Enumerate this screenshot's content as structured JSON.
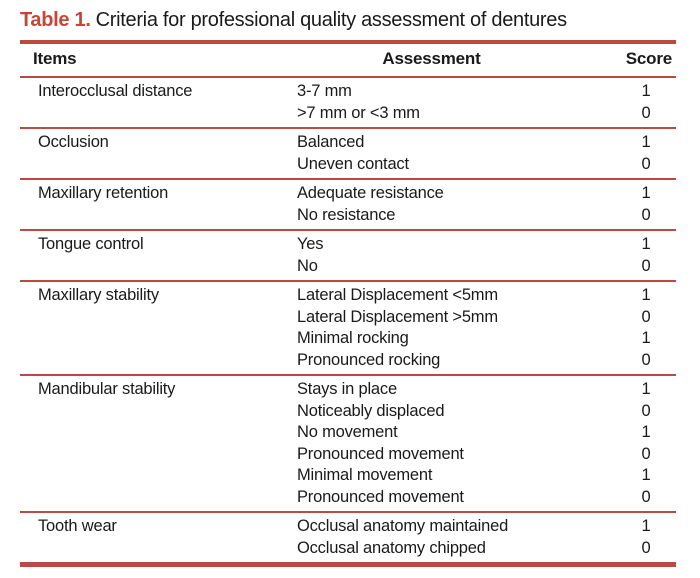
{
  "title": {
    "label": "Table 1.",
    "text": "Criteria for professional quality assessment of dentures"
  },
  "table": {
    "headers": [
      "Items",
      "Assessment",
      "Score"
    ],
    "groups": [
      {
        "item": "Interocclusal distance",
        "rows": [
          {
            "assessment": "3-7 mm",
            "score": "1"
          },
          {
            "assessment": ">7 mm or <3 mm",
            "score": "0"
          }
        ]
      },
      {
        "item": "Occlusion",
        "rows": [
          {
            "assessment": "Balanced",
            "score": "1"
          },
          {
            "assessment": "Uneven contact",
            "score": "0"
          }
        ]
      },
      {
        "item": "Maxillary retention",
        "rows": [
          {
            "assessment": "Adequate resistance",
            "score": "1"
          },
          {
            "assessment": "No resistance",
            "score": "0"
          }
        ]
      },
      {
        "item": "Tongue control",
        "rows": [
          {
            "assessment": "Yes",
            "score": "1"
          },
          {
            "assessment": "No",
            "score": "0"
          }
        ]
      },
      {
        "item": "Maxillary stability",
        "rows": [
          {
            "assessment": "Lateral Displacement <5mm",
            "score": "1"
          },
          {
            "assessment": "Lateral Displacement >5mm",
            "score": "0"
          },
          {
            "assessment": "Minimal rocking",
            "score": "1"
          },
          {
            "assessment": "Pronounced rocking",
            "score": "0"
          }
        ]
      },
      {
        "item": "Mandibular stability",
        "rows": [
          {
            "assessment": "Stays in place",
            "score": "1"
          },
          {
            "assessment": "Noticeably displaced",
            "score": "0"
          },
          {
            "assessment": "No movement",
            "score": "1"
          },
          {
            "assessment": "Pronounced movement",
            "score": "0"
          },
          {
            "assessment": "Minimal movement",
            "score": "1"
          },
          {
            "assessment": "Pronounced movement",
            "score": "0"
          }
        ]
      },
      {
        "item": "Tooth wear",
        "rows": [
          {
            "assessment": "Occlusal anatomy maintained",
            "score": "1"
          },
          {
            "assessment": "Occlusal anatomy chipped",
            "score": "0"
          }
        ]
      }
    ]
  },
  "colors": {
    "accent_red": "#c5473a",
    "rule_red": "#bc4a42",
    "text": "#1a1a1a",
    "background": "#ffffff"
  }
}
